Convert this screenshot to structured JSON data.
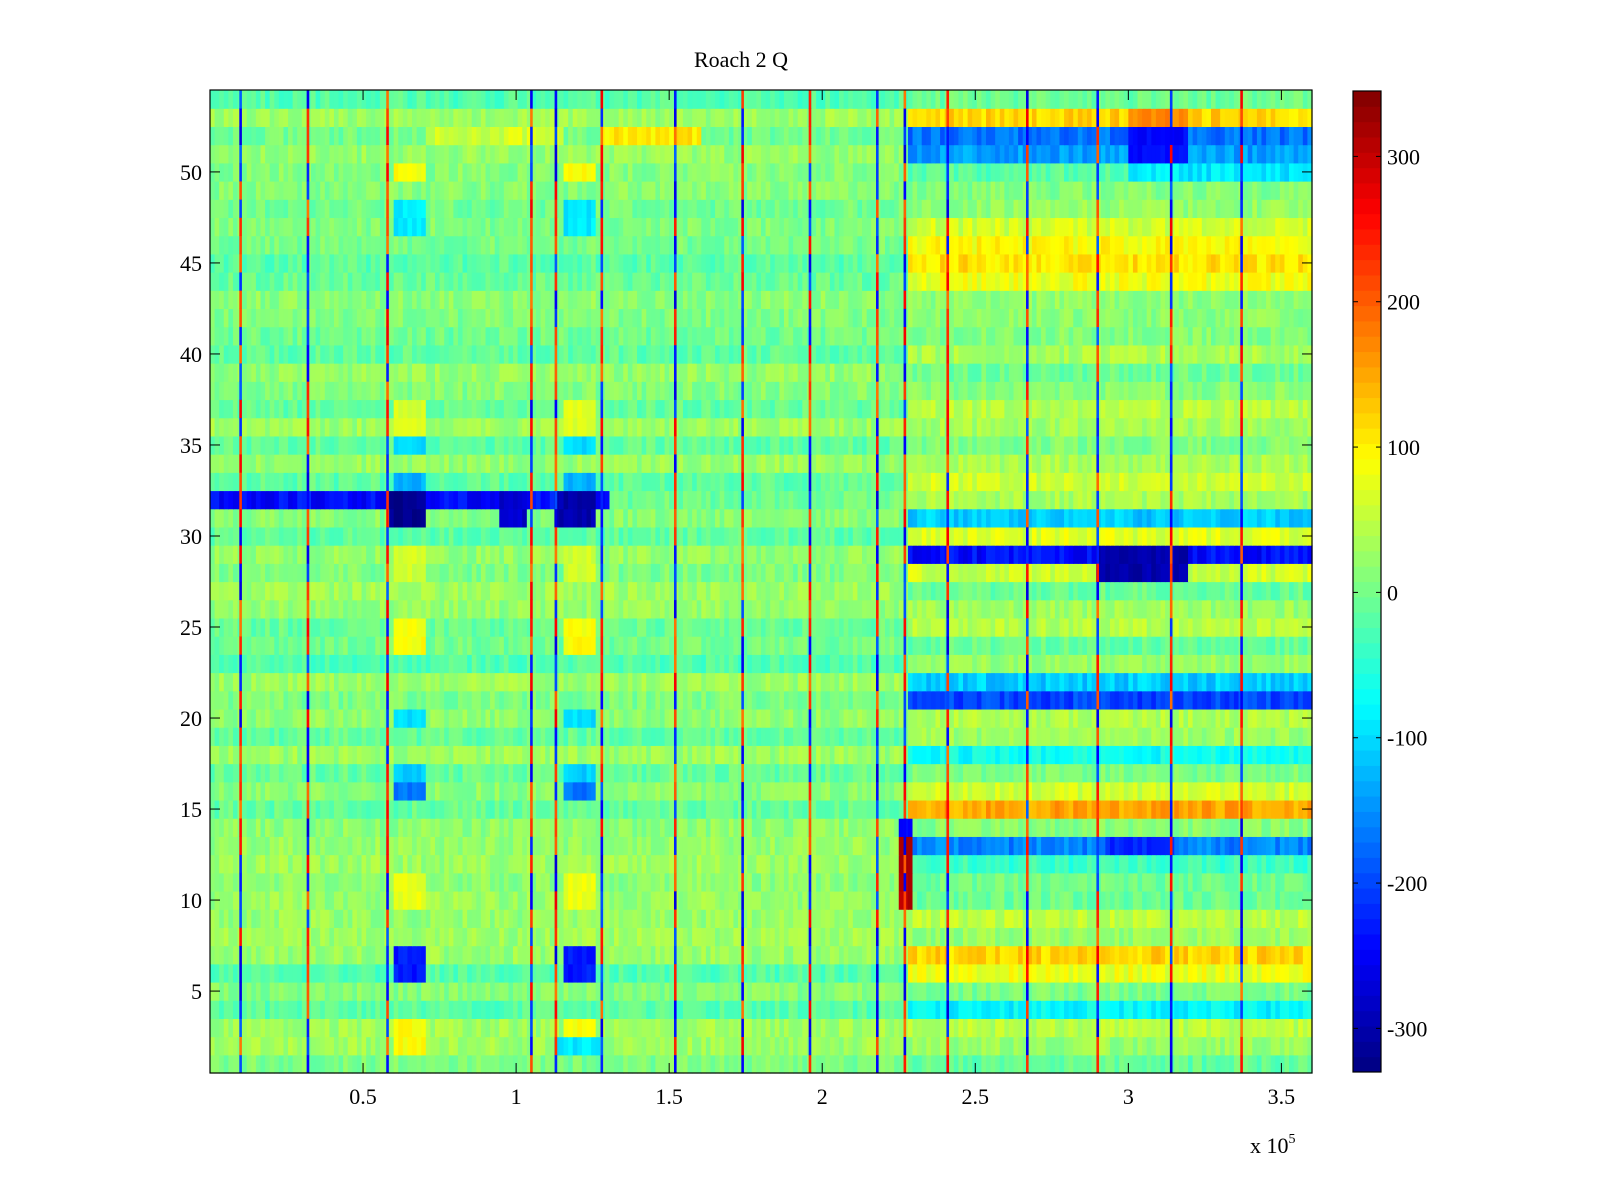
{
  "chart_data": {
    "type": "heatmap",
    "title": "Roach 2 Q",
    "xlabel": "",
    "ylabel": "",
    "x_range": [
      0,
      360000
    ],
    "y_range": [
      0.5,
      54.5
    ],
    "rows": 54,
    "x_ticks": [
      {
        "value": 50000,
        "label": "0.5"
      },
      {
        "value": 100000,
        "label": "1"
      },
      {
        "value": 150000,
        "label": "1.5"
      },
      {
        "value": 200000,
        "label": "2"
      },
      {
        "value": 250000,
        "label": "2.5"
      },
      {
        "value": 300000,
        "label": "3"
      },
      {
        "value": 350000,
        "label": "3.5"
      }
    ],
    "x_exponent": {
      "base": "x 10",
      "power": "5"
    },
    "y_ticks": [
      {
        "value": 5,
        "label": "5"
      },
      {
        "value": 10,
        "label": "10"
      },
      {
        "value": 15,
        "label": "15"
      },
      {
        "value": 20,
        "label": "20"
      },
      {
        "value": 25,
        "label": "25"
      },
      {
        "value": 30,
        "label": "30"
      },
      {
        "value": 35,
        "label": "35"
      },
      {
        "value": 40,
        "label": "40"
      },
      {
        "value": 45,
        "label": "45"
      },
      {
        "value": 50,
        "label": "50"
      }
    ],
    "colorbar": {
      "colormap": "jet",
      "range": [
        -330,
        345
      ],
      "ticks": [
        {
          "value": 300,
          "label": "300"
        },
        {
          "value": 200,
          "label": "200"
        },
        {
          "value": 100,
          "label": "100"
        },
        {
          "value": 0,
          "label": "0"
        },
        {
          "value": -100,
          "label": "-100"
        },
        {
          "value": -200,
          "label": "-200"
        },
        {
          "value": -300,
          "label": "-300"
        }
      ]
    },
    "vertical_spike_x": [
      10000,
      32000,
      58000,
      105000,
      113000,
      128000,
      152000,
      174000,
      196000,
      218000,
      227000,
      241000,
      267000,
      290000,
      314000,
      337000
    ],
    "bright_segment_spike_x": 227000,
    "regime_change_x": 228000,
    "row_bands": [
      {
        "row": 32,
        "x_start": 0,
        "x_end": 130000,
        "value": -240
      },
      {
        "row": 29,
        "x_start": 228000,
        "x_end": 360000,
        "value": -240
      },
      {
        "row": 28,
        "x_start": 228000,
        "x_end": 360000,
        "value": 60
      },
      {
        "row": 30,
        "x_start": 228000,
        "x_end": 360000,
        "value": 70
      },
      {
        "row": 21,
        "x_start": 228000,
        "x_end": 360000,
        "value": -200
      },
      {
        "row": 22,
        "x_start": 228000,
        "x_end": 360000,
        "value": -110
      },
      {
        "row": 52,
        "x_start": 228000,
        "x_end": 360000,
        "value": -170
      },
      {
        "row": 51,
        "x_start": 228000,
        "x_end": 360000,
        "value": -140
      },
      {
        "row": 53,
        "x_start": 228000,
        "x_end": 360000,
        "value": 120
      },
      {
        "row": 52,
        "x_start": 128000,
        "x_end": 160000,
        "value": 110
      },
      {
        "row": 15,
        "x_start": 228000,
        "x_end": 360000,
        "value": 150
      },
      {
        "row": 13,
        "x_start": 228000,
        "x_end": 360000,
        "value": -160
      },
      {
        "row": 7,
        "x_start": 228000,
        "x_end": 360000,
        "value": 120
      },
      {
        "row": 6,
        "x_start": 228000,
        "x_end": 360000,
        "value": 80
      },
      {
        "row": 45,
        "x_start": 228000,
        "x_end": 360000,
        "value": 110
      },
      {
        "row": 46,
        "x_start": 228000,
        "x_end": 360000,
        "value": 90
      },
      {
        "row": 44,
        "x_start": 228000,
        "x_end": 360000,
        "value": 80
      },
      {
        "row": 47,
        "x_start": 228000,
        "x_end": 360000,
        "value": 60
      },
      {
        "row": 16,
        "x_start": 228000,
        "x_end": 360000,
        "value": 60
      },
      {
        "row": 33,
        "x_start": 228000,
        "x_end": 360000,
        "value": 60
      },
      {
        "row": 31,
        "x_start": 228000,
        "x_end": 360000,
        "value": -110
      },
      {
        "row": 4,
        "x_start": 228000,
        "x_end": 360000,
        "value": -80
      },
      {
        "row": 12,
        "x_start": 228000,
        "x_end": 360000,
        "value": -40
      },
      {
        "row": 18,
        "x_start": 228000,
        "x_end": 360000,
        "value": -70
      },
      {
        "row": 52,
        "x_start": 70000,
        "x_end": 115000,
        "value": 60
      },
      {
        "row": 50,
        "x_start": 300000,
        "x_end": 360000,
        "value": -90
      }
    ],
    "blocks": [
      {
        "rows": [
          6,
          7
        ],
        "x_start": 60000,
        "x_end": 70000,
        "value": -230
      },
      {
        "rows": [
          6,
          7
        ],
        "x_start": 116000,
        "x_end": 126000,
        "value": -230
      },
      {
        "rows": [
          16,
          16
        ],
        "x_start": 60000,
        "x_end": 70000,
        "value": -170
      },
      {
        "rows": [
          16,
          16
        ],
        "x_start": 116000,
        "x_end": 126000,
        "value": -170
      },
      {
        "rows": [
          17,
          17
        ],
        "x_start": 60000,
        "x_end": 70000,
        "value": -110
      },
      {
        "rows": [
          17,
          17
        ],
        "x_start": 116000,
        "x_end": 126000,
        "value": -110
      },
      {
        "rows": [
          20,
          20
        ],
        "x_start": 60000,
        "x_end": 70000,
        "value": -100
      },
      {
        "rows": [
          20,
          20
        ],
        "x_start": 116000,
        "x_end": 126000,
        "value": -100
      },
      {
        "rows": [
          24,
          25
        ],
        "x_start": 60000,
        "x_end": 70000,
        "value": 90
      },
      {
        "rows": [
          24,
          25
        ],
        "x_start": 116000,
        "x_end": 126000,
        "value": 90
      },
      {
        "rows": [
          10,
          11
        ],
        "x_start": 60000,
        "x_end": 70000,
        "value": 80
      },
      {
        "rows": [
          10,
          11
        ],
        "x_start": 116000,
        "x_end": 126000,
        "value": 80
      },
      {
        "rows": [
          2,
          3
        ],
        "x_start": 60000,
        "x_end": 70000,
        "value": 90
      },
      {
        "rows": [
          2,
          3
        ],
        "x_start": 116000,
        "x_end": 126000,
        "value": 90
      },
      {
        "rows": [
          33,
          33
        ],
        "x_start": 60000,
        "x_end": 70000,
        "value": -130
      },
      {
        "rows": [
          33,
          33
        ],
        "x_start": 116000,
        "x_end": 126000,
        "value": -130
      },
      {
        "rows": [
          35,
          35
        ],
        "x_start": 60000,
        "x_end": 70000,
        "value": -100
      },
      {
        "rows": [
          35,
          35
        ],
        "x_start": 116000,
        "x_end": 126000,
        "value": -100
      },
      {
        "rows": [
          36,
          37
        ],
        "x_start": 60000,
        "x_end": 70000,
        "value": 70
      },
      {
        "rows": [
          36,
          37
        ],
        "x_start": 116000,
        "x_end": 126000,
        "value": 70
      },
      {
        "rows": [
          47,
          48
        ],
        "x_start": 60000,
        "x_end": 70000,
        "value": -90
      },
      {
        "rows": [
          47,
          48
        ],
        "x_start": 116000,
        "x_end": 126000,
        "value": -90
      },
      {
        "rows": [
          50,
          50
        ],
        "x_start": 60000,
        "x_end": 70000,
        "value": 90
      },
      {
        "rows": [
          50,
          50
        ],
        "x_start": 116000,
        "x_end": 126000,
        "value": 90
      },
      {
        "rows": [
          28,
          29
        ],
        "x_start": 60000,
        "x_end": 70000,
        "value": 60
      },
      {
        "rows": [
          28,
          29
        ],
        "x_start": 116000,
        "x_end": 126000,
        "value": 60
      },
      {
        "rows": [
          2,
          2
        ],
        "x_start": 113000,
        "x_end": 128000,
        "value": -90
      },
      {
        "rows": [
          31,
          32
        ],
        "x_start": 59000,
        "x_end": 70000,
        "value": -320
      },
      {
        "rows": [
          31,
          32
        ],
        "x_start": 113000,
        "x_end": 126000,
        "value": -300
      },
      {
        "rows": [
          31,
          32
        ],
        "x_start": 94000,
        "x_end": 104000,
        "value": -280
      },
      {
        "rows": [
          28,
          29
        ],
        "x_start": 290000,
        "x_end": 320000,
        "value": -300
      },
      {
        "rows": [
          51,
          52
        ],
        "x_start": 300000,
        "x_end": 320000,
        "value": -240
      },
      {
        "rows": [
          53,
          53
        ],
        "x_start": 300000,
        "x_end": 320000,
        "value": 170
      },
      {
        "rows": [
          13,
          13
        ],
        "x_start": 292000,
        "x_end": 315000,
        "value": -220
      },
      {
        "rows": [
          10,
          13
        ],
        "x_start": 225000,
        "x_end": 229000,
        "value": 310
      },
      {
        "rows": [
          14,
          14
        ],
        "x_start": 225000,
        "x_end": 229000,
        "value": -240
      }
    ]
  }
}
